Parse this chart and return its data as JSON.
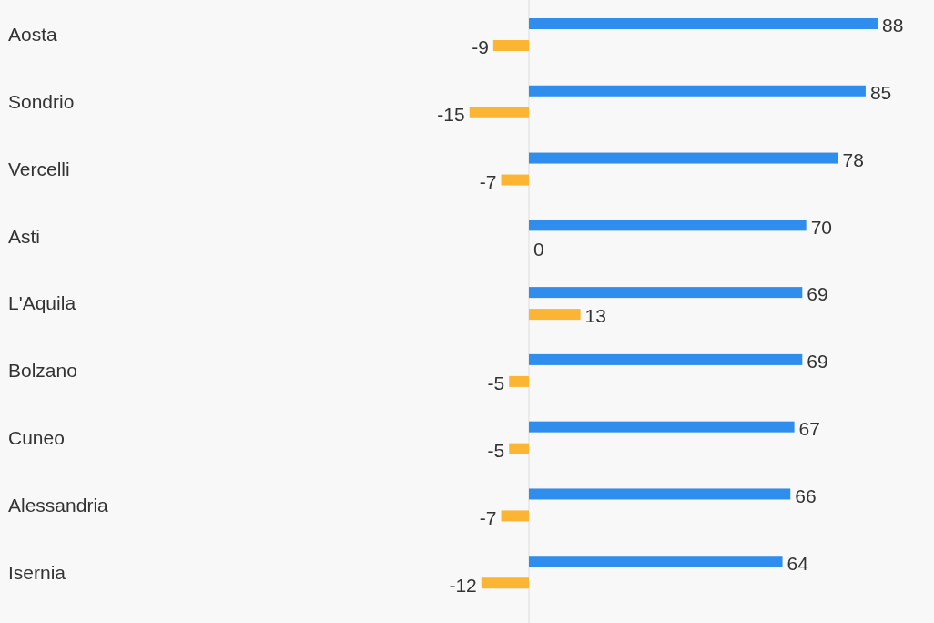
{
  "chart_data": {
    "type": "bar",
    "orientation": "horizontal",
    "categories": [
      "Aosta",
      "Sondrio",
      "Vercelli",
      "Asti",
      "L'Aquila",
      "Bolzano",
      "Cuneo",
      "Alessandria",
      "Isernia"
    ],
    "series": [
      {
        "color": "#2f8ded",
        "values": [
          88,
          85,
          78,
          70,
          69,
          69,
          67,
          66,
          64
        ]
      },
      {
        "color": "#fbb533",
        "values": [
          -9,
          -15,
          -7,
          0,
          13,
          -5,
          -5,
          -7,
          -12
        ]
      }
    ],
    "data_labels": true
  }
}
